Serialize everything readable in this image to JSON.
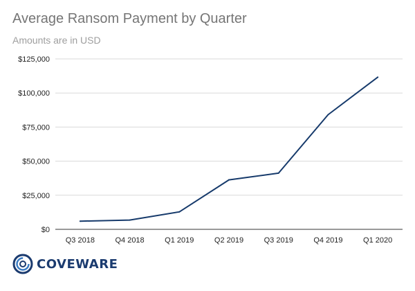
{
  "chart_data": {
    "type": "line",
    "title": "Average Ransom Payment by Quarter",
    "subtitle": "Amounts are in USD",
    "categories": [
      "Q3 2018",
      "Q4 2018",
      "Q1 2019",
      "Q2 2019",
      "Q3 2019",
      "Q4 2019",
      "Q1 2020"
    ],
    "series": [
      {
        "values": [
          6000,
          6800,
          12800,
          36300,
          41200,
          84100,
          111600
        ]
      }
    ],
    "ylim": [
      0,
      125000
    ],
    "yticks": [
      0,
      25000,
      50000,
      75000,
      100000,
      125000
    ],
    "ytick_labels": [
      "$0",
      "$25,000",
      "$50,000",
      "$75,000",
      "$100,000",
      "$125,000"
    ],
    "grid": true,
    "line_color": "#163a6b",
    "grid_color": "#d9d9d9"
  },
  "brand": {
    "logo_text": "COVEWARE",
    "logo_color": "#1b3b6f"
  }
}
